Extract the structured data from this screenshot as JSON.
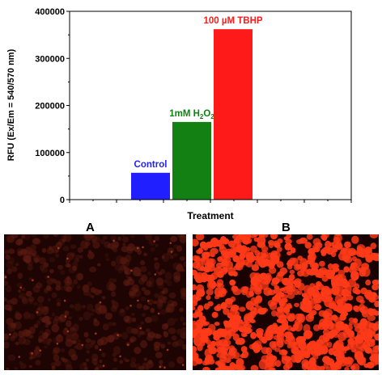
{
  "chart_data": {
    "type": "bar",
    "categories": [
      "Control",
      "1mM H2O2",
      "100 µM TBHP"
    ],
    "values": [
      57000,
      165000,
      362000
    ],
    "colors": [
      "#1f1fff",
      "#138013",
      "#ff1a1a"
    ],
    "ylim": [
      0,
      400000
    ],
    "yticks": [
      0,
      100000,
      200000,
      300000,
      400000
    ],
    "ytick_labels": [
      "0",
      "100000",
      "200000",
      "300000",
      "400000"
    ],
    "xlabel": "Treatment",
    "ylabel": "RFU (Ex/Em = 540/570 nm)",
    "grid": false,
    "legend": "none",
    "bar_labels": [
      {
        "text": "Control"
      },
      {
        "text": "1mM H",
        "sub1": "2",
        "mid": "O",
        "sub2": "2"
      },
      {
        "text": "100 µM TBHP"
      }
    ]
  },
  "panels": {
    "a_label": "A",
    "b_label": "B"
  },
  "micrograph_colors": {
    "a_background": "#1e0503",
    "a_cells": "#5a1a10",
    "b_background": "#1a0202",
    "b_cells": "#ff3a18"
  }
}
